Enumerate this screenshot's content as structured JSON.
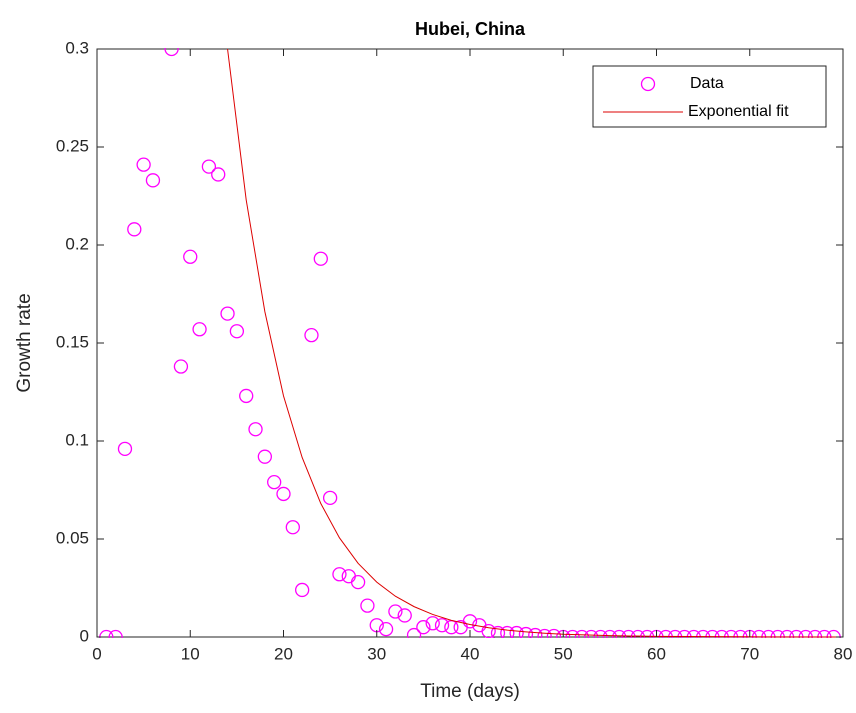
{
  "chart_data": {
    "type": "scatter",
    "title": "Hubei, China",
    "x_label": "Time (days)",
    "y_label": "Growth rate",
    "xlim": [
      0,
      80
    ],
    "ylim": [
      0,
      0.3
    ],
    "xticks": [
      0,
      10,
      20,
      30,
      40,
      50,
      60,
      70,
      80
    ],
    "yticks": [
      0,
      0.05,
      0.1,
      0.15,
      0.2,
      0.25,
      0.3
    ],
    "grid": false,
    "legend_position": "upper-right",
    "series": [
      {
        "name": "Data",
        "type": "scatter",
        "color": "#ff00ff",
        "x": [
          1,
          2,
          3,
          4,
          5,
          6,
          8,
          9,
          10,
          11,
          12,
          13,
          14,
          15,
          16,
          17,
          18,
          19,
          20,
          21,
          22,
          23,
          24,
          25,
          26,
          27,
          28,
          29,
          30,
          31,
          32,
          33,
          34,
          35,
          36,
          37,
          38,
          39,
          40,
          41,
          42,
          43,
          44,
          45,
          46,
          47,
          48,
          49,
          50,
          51,
          52,
          53,
          54,
          55,
          56,
          57,
          58,
          59,
          60,
          61,
          62,
          63,
          64,
          65,
          66,
          67,
          68,
          69,
          70,
          71,
          72,
          73,
          74,
          75,
          76,
          77,
          78,
          79
        ],
        "values": [
          0,
          0,
          0.096,
          0.208,
          0.241,
          0.233,
          0.3,
          0.138,
          0.194,
          0.157,
          0.24,
          0.236,
          0.165,
          0.156,
          0.123,
          0.106,
          0.092,
          0.079,
          0.073,
          0.056,
          0.024,
          0.154,
          0.193,
          0.071,
          0.032,
          0.031,
          0.028,
          0.016,
          0.006,
          0.004,
          0.013,
          0.011,
          0.001,
          0.005,
          0.007,
          0.006,
          0.005,
          0.005,
          0.008,
          0.006,
          0.003,
          0.002,
          0.002,
          0.002,
          0.0015,
          0.001,
          0.0005,
          0.0005,
          0,
          0,
          0,
          0,
          0,
          0,
          0,
          0,
          0,
          0,
          0,
          0,
          0,
          0,
          0,
          0,
          0,
          0,
          0,
          0,
          0,
          0,
          0,
          0,
          0,
          0,
          0,
          0,
          0,
          0
        ]
      },
      {
        "name": "Exponential fit",
        "type": "line",
        "color": "#dd0000",
        "x": [
          14,
          16,
          18,
          20,
          22,
          24,
          26,
          28,
          30,
          32,
          34,
          36,
          38,
          40,
          42,
          44,
          46,
          48,
          50,
          55,
          60,
          70,
          80
        ],
        "values": [
          0.3,
          0.223,
          0.166,
          0.123,
          0.0916,
          0.0681,
          0.0506,
          0.0376,
          0.028,
          0.0208,
          0.0155,
          0.0115,
          0.0085,
          0.0064,
          0.0047,
          0.0035,
          0.0026,
          0.0019,
          0.0014,
          0.0007,
          0.0003,
          0.0001,
          0
        ]
      }
    ]
  }
}
